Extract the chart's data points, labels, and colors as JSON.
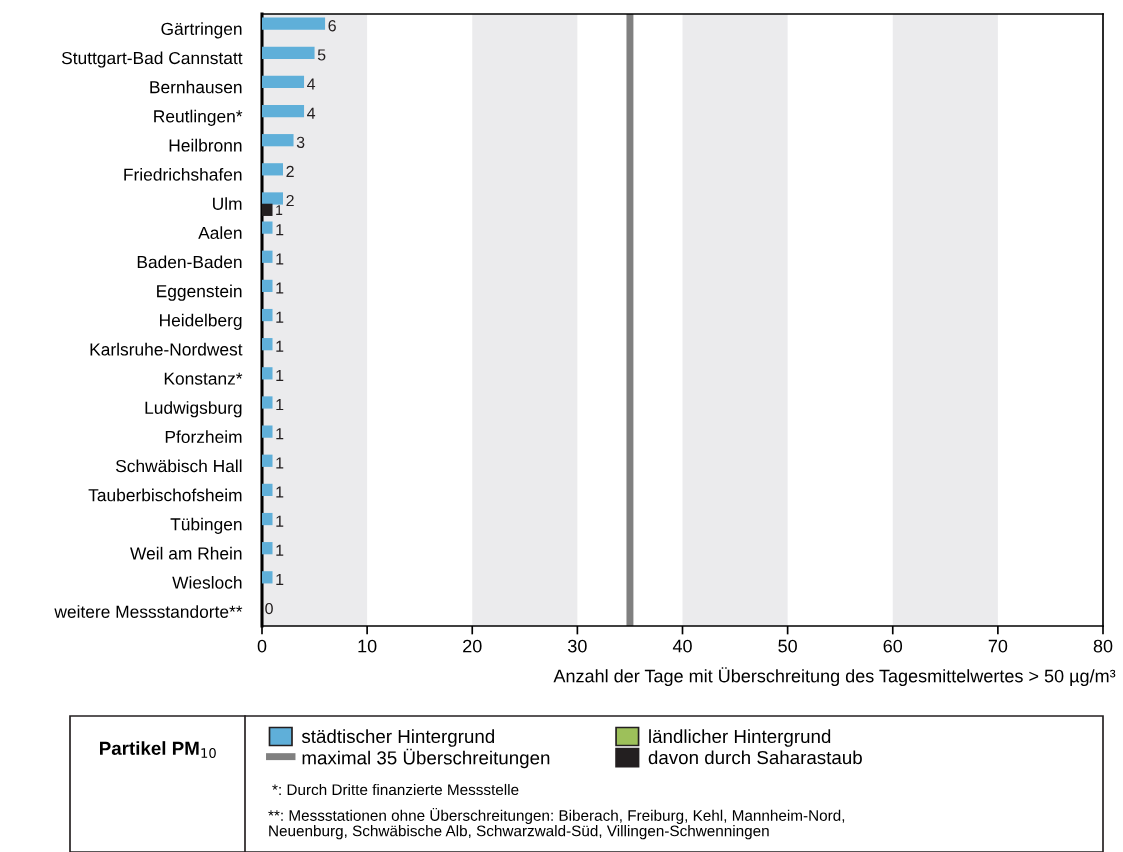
{
  "chart_data": {
    "type": "bar",
    "orientation": "horizontal",
    "title": "Partikel PM$_{10}$",
    "xlabel": "Anzahl der Tage mit Überschreitung des Tagesmittelwertes > 50 µg/m³",
    "categories": [
      "Gärtringen",
      "Stuttgart-Bad Cannstatt",
      "Bernhausen",
      "Reutlingen*",
      "Heilbronn",
      "Friedrichshafen",
      "Ulm",
      "Aalen",
      "Baden-Baden",
      "Eggenstein",
      "Heidelberg",
      "Karlsruhe-Nordwest",
      "Konstanz*",
      "Ludwigsburg",
      "Pforzheim",
      "Schwäbisch Hall",
      "Tauberbischofsheim",
      "Tübingen",
      "Weil am Rhein",
      "Wiesloch",
      "weitere Messstandorte**"
    ],
    "series": [
      {
        "name": "städtischer Hintergrund",
        "color": "#5fafd9",
        "values": [
          6,
          5,
          4,
          4,
          3,
          2,
          2,
          1,
          1,
          1,
          1,
          1,
          1,
          1,
          1,
          1,
          1,
          1,
          1,
          1,
          0
        ]
      },
      {
        "name": "ländlicher Hintergrund",
        "color": "#9dc05a",
        "values": [
          null,
          null,
          null,
          null,
          null,
          null,
          null,
          null,
          null,
          null,
          null,
          null,
          null,
          null,
          null,
          null,
          null,
          null,
          null,
          null,
          null
        ]
      },
      {
        "name": "davon durch Saharastaub",
        "color": "#231f20",
        "values": [
          null,
          null,
          null,
          null,
          null,
          null,
          1,
          null,
          null,
          null,
          null,
          null,
          null,
          null,
          null,
          null,
          null,
          null,
          null,
          null,
          null
        ]
      }
    ],
    "data_labels": true,
    "xlim": [
      0,
      80
    ],
    "xticks": [
      0,
      10,
      20,
      30,
      40,
      50,
      60,
      70,
      80
    ],
    "ref_lines": [
      {
        "axis": "x",
        "value": 35,
        "label": "maximal 35 Überschreitungen",
        "color": "#808080"
      }
    ],
    "bands": [
      {
        "axis": "x",
        "from": 0,
        "to": 10,
        "color": "#ebebed"
      },
      {
        "axis": "x",
        "from": 20,
        "to": 30,
        "color": "#ebebed"
      },
      {
        "axis": "x",
        "from": 40,
        "to": 50,
        "color": "#ebebed"
      },
      {
        "axis": "x",
        "from": 60,
        "to": 70,
        "color": "#ebebed"
      }
    ],
    "legend": "bottom",
    "grid": false,
    "annotations": [
      "*: Durch Dritte finanzierte Messstelle",
      "**: Messstationen ohne Überschreitungen: Biberach, Freiburg, Kehl, Mannheim-Nord,\nNeuenburg, Schwäbische Alb, Schwarzwald-Süd, Villingen-Schwenningen"
    ]
  }
}
